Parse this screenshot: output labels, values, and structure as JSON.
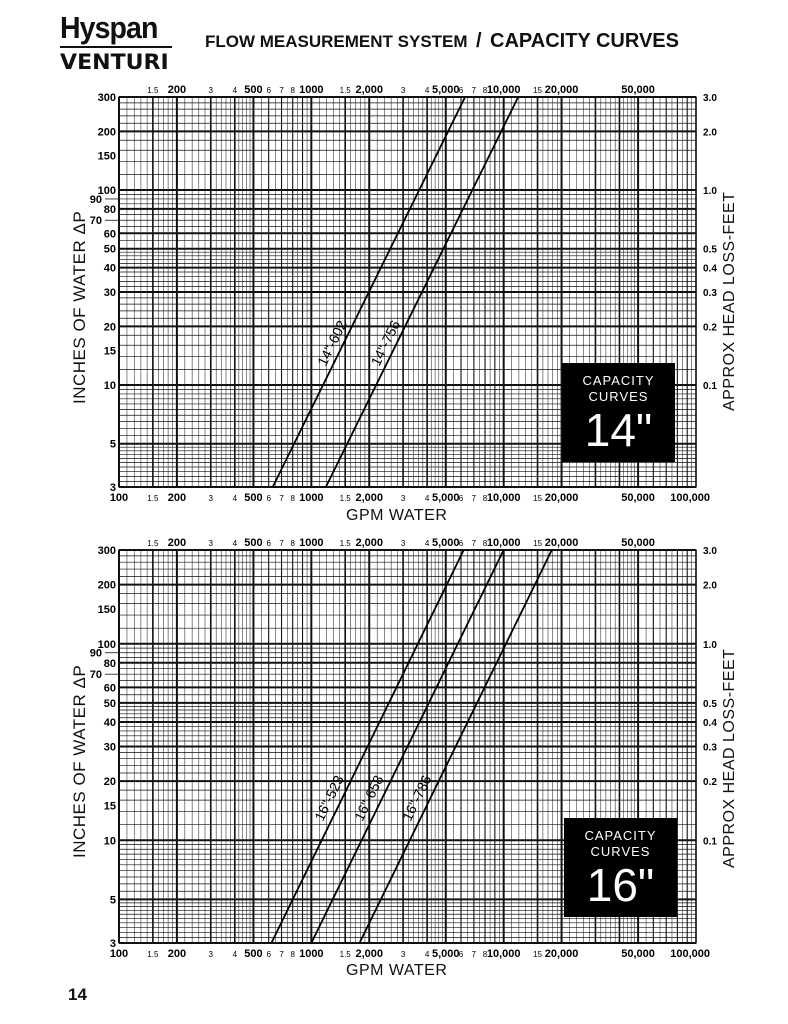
{
  "header": {
    "logo_top": "Hyspan",
    "logo_bottom": "VENTURI",
    "title_part1": "FLOW MEASUREMENT SYSTEM",
    "title_separator": "/",
    "title_part2": "CAPACITY CURVES"
  },
  "page_number": "14",
  "chart_data": [
    {
      "type": "line",
      "title": "CAPACITY CURVES 14\"",
      "badge": {
        "line1": "CAPACITY",
        "line2": "CURVES",
        "size": "14\""
      },
      "xlabel": "GPM WATER",
      "ylabel": "INCHES OF WATER ΔP",
      "ylabel_right": "APPROX HEAD LOSS-FEET",
      "xscale": "log",
      "yscale": "log",
      "xlim": [
        100,
        100000
      ],
      "ylim": [
        3,
        300
      ],
      "grid": true,
      "x_tick_labels": [
        {
          "v": 100,
          "t": "100",
          "major": true
        },
        {
          "v": 150,
          "t": "1.5",
          "major": false
        },
        {
          "v": 200,
          "t": "200",
          "major": true
        },
        {
          "v": 300,
          "t": "3",
          "major": false
        },
        {
          "v": 400,
          "t": "4",
          "major": false
        },
        {
          "v": 500,
          "t": "500",
          "major": true
        },
        {
          "v": 600,
          "t": "6",
          "major": false
        },
        {
          "v": 700,
          "t": "7",
          "major": false
        },
        {
          "v": 800,
          "t": "8",
          "major": false
        },
        {
          "v": 1000,
          "t": "1000",
          "major": true
        },
        {
          "v": 1500,
          "t": "1.5",
          "major": false
        },
        {
          "v": 2000,
          "t": "2,000",
          "major": true
        },
        {
          "v": 3000,
          "t": "3",
          "major": false
        },
        {
          "v": 4000,
          "t": "4",
          "major": false
        },
        {
          "v": 5000,
          "t": "5,000",
          "major": true
        },
        {
          "v": 6000,
          "t": "6",
          "major": false
        },
        {
          "v": 7000,
          "t": "7",
          "major": false
        },
        {
          "v": 8000,
          "t": "8",
          "major": false
        },
        {
          "v": 10000,
          "t": "10,000",
          "major": true
        },
        {
          "v": 15000,
          "t": "15",
          "major": false
        },
        {
          "v": 20000,
          "t": "20,000",
          "major": true
        },
        {
          "v": 50000,
          "t": "50,000",
          "major": true
        },
        {
          "v": 100000,
          "t": "100,000",
          "major": true
        }
      ],
      "y_tick_labels": [
        300,
        200,
        150,
        100,
        90,
        80,
        70,
        60,
        50,
        40,
        30,
        20,
        15,
        10,
        5,
        3
      ],
      "y_right_tick_labels": [
        {
          "v": 300,
          "t": "3.0"
        },
        {
          "v": 200,
          "t": "2.0"
        },
        {
          "v": 100,
          "t": "1.0"
        },
        {
          "v": 50,
          "t": "0.5"
        },
        {
          "v": 40,
          "t": "0.4"
        },
        {
          "v": 30,
          "t": "0.3"
        },
        {
          "v": 20,
          "t": "0.2"
        },
        {
          "v": 10,
          "t": "0.1"
        }
      ],
      "series": [
        {
          "name": "14\"-602",
          "x": [
            630,
            6300
          ],
          "y": [
            3,
            300
          ],
          "label_at": [
            1450,
            16
          ]
        },
        {
          "name": "14\"-756",
          "x": [
            1190,
            11900
          ],
          "y": [
            3,
            300
          ],
          "label_at": [
            2750,
            16
          ]
        }
      ]
    },
    {
      "type": "line",
      "title": "CAPACITY CURVES 16\"",
      "badge": {
        "line1": "CAPACITY",
        "line2": "CURVES",
        "size": "16\""
      },
      "xlabel": "GPM WATER",
      "ylabel": "INCHES OF WATER ΔP",
      "ylabel_right": "APPROX HEAD LOSS-FEET",
      "xscale": "log",
      "yscale": "log",
      "xlim": [
        100,
        100000
      ],
      "ylim": [
        3,
        300
      ],
      "grid": true,
      "x_tick_labels": [
        {
          "v": 100,
          "t": "100",
          "major": true
        },
        {
          "v": 150,
          "t": "1.5",
          "major": false
        },
        {
          "v": 200,
          "t": "200",
          "major": true
        },
        {
          "v": 300,
          "t": "3",
          "major": false
        },
        {
          "v": 400,
          "t": "4",
          "major": false
        },
        {
          "v": 500,
          "t": "500",
          "major": true
        },
        {
          "v": 600,
          "t": "6",
          "major": false
        },
        {
          "v": 700,
          "t": "7",
          "major": false
        },
        {
          "v": 800,
          "t": "8",
          "major": false
        },
        {
          "v": 1000,
          "t": "1000",
          "major": true
        },
        {
          "v": 1500,
          "t": "1.5",
          "major": false
        },
        {
          "v": 2000,
          "t": "2,000",
          "major": true
        },
        {
          "v": 3000,
          "t": "3",
          "major": false
        },
        {
          "v": 4000,
          "t": "4",
          "major": false
        },
        {
          "v": 5000,
          "t": "5,000",
          "major": true
        },
        {
          "v": 6000,
          "t": "6",
          "major": false
        },
        {
          "v": 7000,
          "t": "7",
          "major": false
        },
        {
          "v": 8000,
          "t": "8",
          "major": false
        },
        {
          "v": 10000,
          "t": "10,000",
          "major": true
        },
        {
          "v": 15000,
          "t": "15",
          "major": false
        },
        {
          "v": 20000,
          "t": "20,000",
          "major": true
        },
        {
          "v": 50000,
          "t": "50,000",
          "major": true
        },
        {
          "v": 100000,
          "t": "100,000",
          "major": true
        }
      ],
      "y_tick_labels": [
        300,
        200,
        150,
        100,
        90,
        80,
        70,
        60,
        50,
        40,
        30,
        20,
        15,
        10,
        5,
        3
      ],
      "y_right_tick_labels": [
        {
          "v": 300,
          "t": "3.0"
        },
        {
          "v": 200,
          "t": "2.0"
        },
        {
          "v": 100,
          "t": "1.0"
        },
        {
          "v": 50,
          "t": "0.5"
        },
        {
          "v": 40,
          "t": "0.4"
        },
        {
          "v": 30,
          "t": "0.3"
        },
        {
          "v": 20,
          "t": "0.2"
        },
        {
          "v": 10,
          "t": "0.1"
        }
      ],
      "series": [
        {
          "name": "16\"-523",
          "x": [
            620,
            6200
          ],
          "y": [
            3,
            300
          ],
          "label_at": [
            1400,
            16
          ]
        },
        {
          "name": "16\"-658",
          "x": [
            1000,
            10000
          ],
          "y": [
            3,
            300
          ],
          "label_at": [
            2250,
            16
          ]
        },
        {
          "name": "16\"-786",
          "x": [
            1780,
            17800
          ],
          "y": [
            3,
            300
          ],
          "label_at": [
            4000,
            16
          ]
        }
      ]
    }
  ]
}
